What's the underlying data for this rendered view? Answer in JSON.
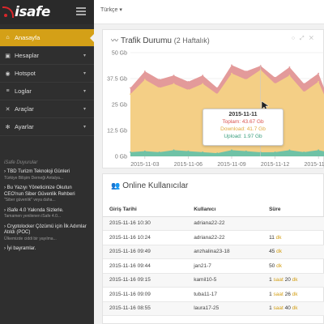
{
  "brand": {
    "logo_text": "isafe"
  },
  "topbar": {
    "language": "Türkçe ▾"
  },
  "sidebar": {
    "items": [
      {
        "label": "Anasayfa",
        "icon": "home-icon",
        "active": true
      },
      {
        "label": "Hesaplar",
        "icon": "user-icon",
        "active": false
      },
      {
        "label": "Hotspot",
        "icon": "wifi-icon",
        "active": false
      },
      {
        "label": "Loglar",
        "icon": "list-icon",
        "active": false
      },
      {
        "label": "Araçlar",
        "icon": "wrench-icon",
        "active": false
      },
      {
        "label": "Ayarlar",
        "icon": "gear-icon",
        "active": false
      }
    ]
  },
  "news": {
    "title": "iSafe Duyurular",
    "items": [
      {
        "head": "› TBD Turizm Teknoloji Günleri",
        "sub": "Türkiye Bilişim Derneği Antalya..."
      },
      {
        "head": "› Bu Yazıyı Yöneticinize Okutun CEO'nun Siber Güvenlik Rehberi",
        "sub": "\"Siber güvenlik\" veya daha..."
      },
      {
        "head": "› iSafe 4.0 Yakında Sizlerle.",
        "sub": "Tamamen yenilenen iSafe 4.0..."
      },
      {
        "head": "› Cryptolocker Çözümü için İlk Adımlar Atıldı (POC)",
        "sub": "Ülkemizde ciddi bir yayılma..."
      },
      {
        "head": "› İyi bayramlar.",
        "sub": ""
      }
    ]
  },
  "traffic": {
    "title": "Trafik Durumu",
    "subtitle": "(2 Haftalık)",
    "tooltip": {
      "date": "2015-11-11",
      "total": "Toplam: 43.67 Gb",
      "download": "Download: 41.7 Gb",
      "upload": "Upload: 1.97 Gb"
    }
  },
  "chart_data": {
    "type": "area",
    "x": [
      "2015-11-02",
      "2015-11-03",
      "2015-11-04",
      "2015-11-05",
      "2015-11-06",
      "2015-11-07",
      "2015-11-08",
      "2015-11-09",
      "2015-11-10",
      "2015-11-11",
      "2015-11-12",
      "2015-11-13",
      "2015-11-14",
      "2015-11-15",
      "2015-11-16"
    ],
    "x_tick_labels": [
      "2015-11-03",
      "2015-11-06",
      "2015-11-09",
      "2015-11-12",
      "2015-11-15"
    ],
    "y_tick_labels": [
      "0 Gb",
      "12.5 Gb",
      "25 Gb",
      "37.5 Gb",
      "50 Gb"
    ],
    "ylim": [
      0,
      50
    ],
    "series": [
      {
        "name": "Toplam",
        "color": "#e39a9a",
        "values": [
          33,
          41,
          37,
          39,
          36,
          39,
          33,
          44,
          41,
          43.67,
          38,
          43,
          35,
          40,
          22
        ]
      },
      {
        "name": "Download",
        "color": "#f4cf86",
        "values": [
          30,
          37,
          33,
          35,
          32,
          35,
          30,
          40,
          37,
          41.7,
          35,
          39,
          31,
          36,
          20
        ]
      },
      {
        "name": "Upload",
        "color": "#6fc2a6",
        "values": [
          2,
          2.5,
          2,
          3,
          2.5,
          2,
          1.5,
          3,
          2.5,
          1.97,
          2,
          3,
          2,
          3,
          1.5
        ]
      }
    ]
  },
  "online": {
    "title": "Online Kullanıcılar",
    "headers": [
      "Giriş Tarihi",
      "Kullanıcı",
      "Süre"
    ],
    "rows": [
      {
        "date": "2015-11-16 10:30",
        "user": "adriana22-22",
        "num1": "",
        "unit1": "",
        "num2": "",
        "unit2": ""
      },
      {
        "date": "2015-11-16 10:24",
        "user": "adriana22-22",
        "num1": "11",
        "unit1": " dk",
        "num2": "",
        "unit2": ""
      },
      {
        "date": "2015-11-16 09:49",
        "user": "anzhalina23-18",
        "num1": "45",
        "unit1": " dk",
        "num2": "",
        "unit2": ""
      },
      {
        "date": "2015-11-16 09:44",
        "user": "jan21-7",
        "num1": "50",
        "unit1": " dk",
        "num2": "",
        "unit2": ""
      },
      {
        "date": "2015-11-16 09:15",
        "user": "kamil10-5",
        "num1": "1",
        "unit1": " saat ",
        "num2": "20",
        "unit2": " dk"
      },
      {
        "date": "2015-11-16 09:09",
        "user": "tuba11-17",
        "num1": "1",
        "unit1": " saat ",
        "num2": "26",
        "unit2": " dk"
      },
      {
        "date": "2015-11-16 08:55",
        "user": "laura17-25",
        "num1": "1",
        "unit1": " saat ",
        "num2": "40",
        "unit2": " dk"
      }
    ]
  }
}
